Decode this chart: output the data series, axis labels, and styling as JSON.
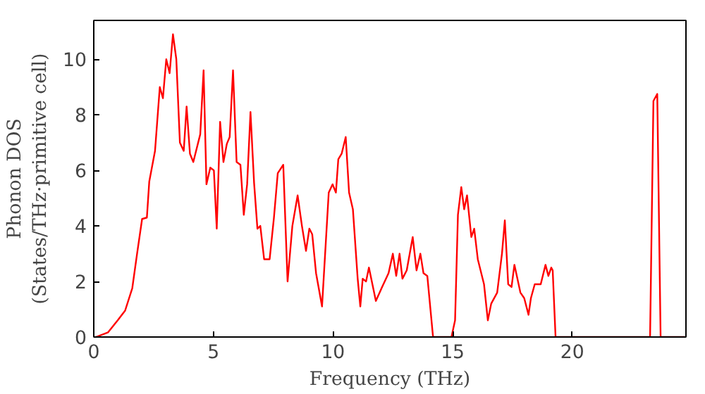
{
  "chart_data": {
    "type": "line",
    "xlabel": "Frequency (THz)",
    "ylabel": "Phonon DOS\n(States/THz·primitive cell)",
    "xlim": [
      0,
      24.75
    ],
    "ylim": [
      0,
      11.4
    ],
    "xticks": [
      0,
      5,
      10,
      15,
      20
    ],
    "yticks": [
      0,
      2,
      4,
      6,
      8,
      10
    ],
    "grid": false,
    "series": [
      {
        "color": "#ff0000",
        "x": [
          0.09,
          0.6,
          1.0,
          1.31,
          1.61,
          1.81,
          2.02,
          2.22,
          2.32,
          2.56,
          2.76,
          2.89,
          3.03,
          3.17,
          3.31,
          3.45,
          3.6,
          3.76,
          3.88,
          4.02,
          4.16,
          4.45,
          4.59,
          4.71,
          4.87,
          5.02,
          5.14,
          5.28,
          5.42,
          5.56,
          5.68,
          5.82,
          5.97,
          6.13,
          6.27,
          6.41,
          6.55,
          6.7,
          6.84,
          6.96,
          7.12,
          7.35,
          7.53,
          7.69,
          7.92,
          8.1,
          8.3,
          8.52,
          8.7,
          8.87,
          9.01,
          9.13,
          9.29,
          9.54,
          9.82,
          9.98,
          10.12,
          10.22,
          10.36,
          10.53,
          10.67,
          10.83,
          11.03,
          11.14,
          11.24,
          11.38,
          11.5,
          11.79,
          12.05,
          12.32,
          12.5,
          12.64,
          12.78,
          12.9,
          13.08,
          13.33,
          13.49,
          13.65,
          13.78,
          13.94,
          14.18,
          14.95,
          15.1,
          15.22,
          15.36,
          15.48,
          15.6,
          15.78,
          15.9,
          16.05,
          16.31,
          16.47,
          16.61,
          16.86,
          17.06,
          17.18,
          17.32,
          17.46,
          17.58,
          17.83,
          17.99,
          18.17,
          18.27,
          18.43,
          18.68,
          18.88,
          19.0,
          19.12,
          19.18,
          19.3,
          23.25,
          23.39,
          23.55,
          23.69,
          24.7
        ],
        "values": [
          0,
          0.17,
          0.6,
          0.95,
          1.76,
          3.0,
          4.25,
          4.3,
          5.6,
          6.7,
          9.0,
          8.6,
          10.0,
          9.5,
          10.9,
          10.0,
          7.0,
          6.7,
          8.3,
          6.6,
          6.3,
          7.3,
          9.6,
          5.5,
          6.1,
          6.0,
          3.9,
          7.75,
          6.3,
          6.95,
          7.2,
          9.6,
          6.3,
          6.2,
          4.4,
          5.5,
          8.1,
          5.55,
          3.9,
          4.0,
          2.8,
          2.8,
          4.3,
          5.9,
          6.2,
          2.0,
          4.0,
          5.1,
          4.0,
          3.1,
          3.9,
          3.7,
          2.3,
          1.1,
          5.2,
          5.5,
          5.2,
          6.4,
          6.6,
          7.2,
          5.2,
          4.6,
          2.1,
          1.1,
          2.1,
          2.0,
          2.5,
          1.3,
          1.8,
          2.3,
          3.0,
          2.2,
          3.0,
          2.1,
          2.4,
          3.6,
          2.4,
          3.0,
          2.3,
          2.2,
          0,
          0,
          0.6,
          4.4,
          5.4,
          4.6,
          5.1,
          3.6,
          3.9,
          2.8,
          1.9,
          0.6,
          1.2,
          1.6,
          3.0,
          4.2,
          1.9,
          1.8,
          2.6,
          1.6,
          1.4,
          0.8,
          1.4,
          1.9,
          1.9,
          2.6,
          2.2,
          2.5,
          2.4,
          0,
          0,
          8.5,
          8.75,
          0,
          0
        ]
      }
    ]
  }
}
